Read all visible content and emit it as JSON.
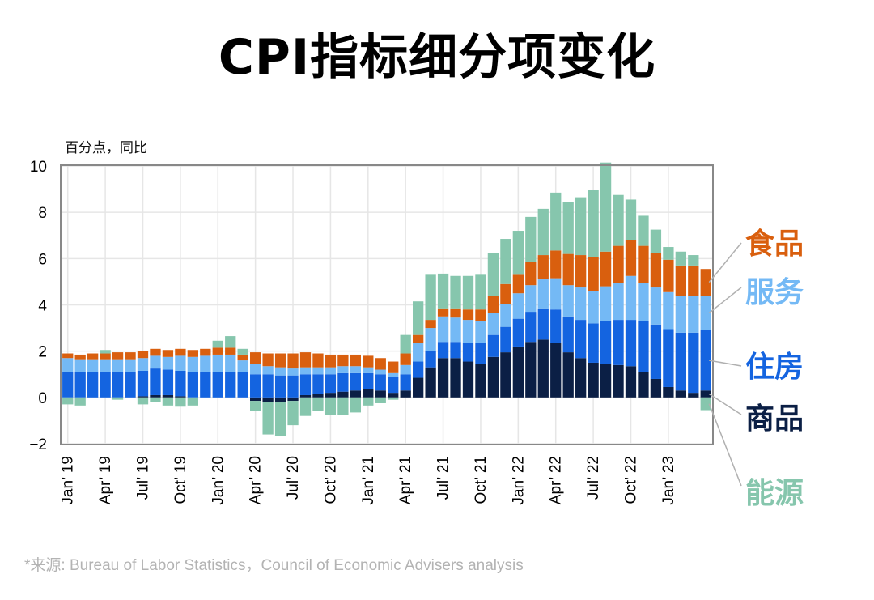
{
  "title": "CPI指标细分项变化",
  "unit_label": "百分点，同比",
  "source": "*来源: Bureau of Labor Statistics，Council of Economic Advisers analysis",
  "colors": {
    "food": "#d95f0e",
    "services": "#74b9f5",
    "housing": "#1464e0",
    "goods": "#0b1f45",
    "energy": "#86c6ad"
  },
  "chart_data": {
    "type": "bar",
    "stacked": true,
    "ylim": [
      -2,
      10
    ],
    "yticks": [
      "10",
      "8",
      "6",
      "4",
      "2",
      "0",
      "−2"
    ],
    "grid": true,
    "legend_position": "right",
    "x_tick_labels": [
      "Jan’ 19",
      "Apr’ 19",
      "Jul’ 19",
      "Oct’ 19",
      "Jan’ 20",
      "Apr’ 20",
      "Jul’ 20",
      "Oct’ 20",
      "Jan’ 21",
      "Apr’ 21",
      "Jul’ 21",
      "Oct’ 21",
      "Jan’ 22",
      "Apr’ 22",
      "Jul’ 22",
      "Oct’ 22",
      "Jan’ 23"
    ],
    "series": [
      {
        "key": "goods",
        "name": "商品",
        "values": [
          0.0,
          0.0,
          0.0,
          0.0,
          0.0,
          0.0,
          0.05,
          0.1,
          0.1,
          0.05,
          0.0,
          0.0,
          0.0,
          0.0,
          0.0,
          -0.15,
          -0.2,
          -0.2,
          -0.15,
          0.1,
          0.15,
          0.2,
          0.25,
          0.3,
          0.35,
          0.3,
          0.2,
          0.3,
          0.85,
          1.3,
          1.7,
          1.7,
          1.55,
          1.45,
          1.75,
          1.95,
          2.2,
          2.4,
          2.5,
          2.35,
          1.95,
          1.7,
          1.5,
          1.45,
          1.4,
          1.35,
          1.1,
          0.8,
          0.45,
          0.3,
          0.2,
          0.3
        ]
      },
      {
        "key": "housing",
        "name": "住房",
        "values": [
          1.1,
          1.1,
          1.1,
          1.1,
          1.1,
          1.1,
          1.1,
          1.15,
          1.1,
          1.1,
          1.1,
          1.1,
          1.1,
          1.1,
          1.1,
          1.0,
          1.0,
          0.95,
          0.95,
          0.9,
          0.85,
          0.8,
          0.8,
          0.75,
          0.7,
          0.7,
          0.7,
          0.7,
          0.7,
          0.7,
          0.7,
          0.7,
          0.8,
          0.9,
          0.95,
          1.1,
          1.2,
          1.3,
          1.35,
          1.45,
          1.55,
          1.65,
          1.7,
          1.85,
          1.95,
          2.0,
          2.2,
          2.35,
          2.5,
          2.5,
          2.6,
          2.6
        ]
      },
      {
        "key": "services",
        "name": "服务",
        "values": [
          0.6,
          0.55,
          0.55,
          0.55,
          0.55,
          0.55,
          0.55,
          0.55,
          0.55,
          0.65,
          0.65,
          0.7,
          0.75,
          0.75,
          0.5,
          0.45,
          0.35,
          0.35,
          0.3,
          0.3,
          0.3,
          0.3,
          0.3,
          0.3,
          0.25,
          0.2,
          0.15,
          0.4,
          0.8,
          1.0,
          1.1,
          1.05,
          1.0,
          0.95,
          0.95,
          1.0,
          1.1,
          1.15,
          1.25,
          1.35,
          1.35,
          1.4,
          1.4,
          1.5,
          1.6,
          1.9,
          1.65,
          1.6,
          1.6,
          1.6,
          1.6,
          1.5
        ]
      },
      {
        "key": "food",
        "name": "食品",
        "values": [
          0.2,
          0.2,
          0.25,
          0.25,
          0.3,
          0.3,
          0.3,
          0.3,
          0.3,
          0.3,
          0.3,
          0.3,
          0.3,
          0.3,
          0.25,
          0.5,
          0.55,
          0.6,
          0.65,
          0.65,
          0.6,
          0.55,
          0.5,
          0.5,
          0.5,
          0.5,
          0.5,
          0.5,
          0.35,
          0.35,
          0.35,
          0.4,
          0.45,
          0.5,
          0.75,
          0.85,
          0.8,
          1.0,
          1.05,
          1.2,
          1.35,
          1.4,
          1.45,
          1.5,
          1.6,
          1.55,
          1.6,
          1.5,
          1.4,
          1.3,
          1.3,
          1.15
        ]
      },
      {
        "key": "energy",
        "name": "能源",
        "values": [
          -0.3,
          -0.35,
          0.0,
          0.15,
          -0.1,
          0.0,
          -0.3,
          -0.2,
          -0.35,
          -0.4,
          -0.35,
          0.0,
          0.3,
          0.5,
          0.25,
          -0.45,
          -1.4,
          -1.45,
          -1.05,
          -0.8,
          -0.6,
          -0.75,
          -0.75,
          -0.65,
          -0.35,
          -0.25,
          -0.1,
          0.8,
          1.45,
          1.95,
          1.5,
          1.4,
          1.45,
          1.5,
          1.85,
          1.95,
          1.9,
          1.95,
          2.0,
          2.5,
          2.25,
          2.5,
          2.9,
          3.85,
          2.2,
          1.75,
          1.3,
          1.0,
          0.55,
          0.6,
          0.45,
          -0.55
        ]
      }
    ]
  },
  "legend": [
    {
      "key": "food",
      "label": "食品"
    },
    {
      "key": "services",
      "label": "服务"
    },
    {
      "key": "housing",
      "label": "住房"
    },
    {
      "key": "goods",
      "label": "商品"
    },
    {
      "key": "energy",
      "label": "能源"
    }
  ]
}
